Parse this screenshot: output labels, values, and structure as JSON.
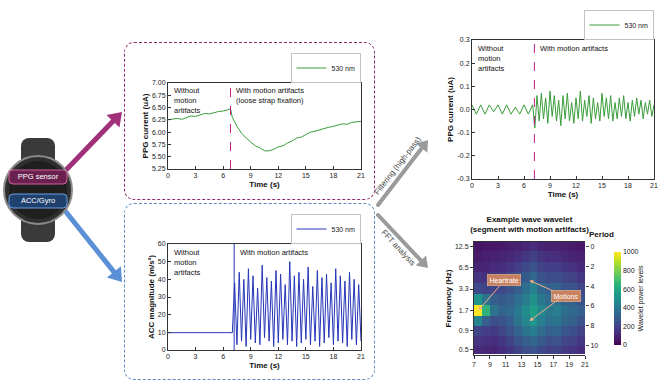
{
  "chart_data": [
    {
      "type": "line",
      "x_label": "Time (s)",
      "y_label": "PPG current (uA)",
      "xlim": [
        0,
        21
      ],
      "xticks": [
        0,
        3,
        6,
        9,
        12,
        15,
        18,
        21
      ],
      "ylim": [
        5.25,
        7.0
      ],
      "yticks": [
        5.25,
        {
          "value": 5.5,
          "label": "5.50"
        },
        5.75,
        {
          "value": 6.0,
          "label": "6.00"
        },
        6.25,
        {
          "value": 6.5,
          "label": "6.50"
        },
        6.75,
        {
          "value": 7.0,
          "label": "7.00"
        }
      ],
      "grid": false,
      "legend": "top right",
      "onset_time": 6.8,
      "annotations": [
        "Without\nmotion\nartifacts",
        "With motion artifacts\n(loose strap fixation)"
      ],
      "x": [
        0,
        0.5,
        1,
        1.5,
        2,
        2.5,
        3,
        3.5,
        4,
        4.5,
        5,
        5.5,
        6,
        6.5,
        6.8,
        7,
        7.5,
        8,
        8.5,
        9,
        9.5,
        10,
        10.5,
        11,
        11.5,
        12,
        12.5,
        13,
        13.5,
        14,
        14.5,
        15,
        15.5,
        16,
        16.5,
        17,
        17.5,
        18,
        18.5,
        19,
        19.5,
        20,
        20.5,
        21
      ],
      "series": [
        {
          "name": "530 nm",
          "color": "#3a9d3a",
          "values": [
            6.25,
            6.27,
            6.28,
            6.26,
            6.3,
            6.33,
            6.32,
            6.35,
            6.38,
            6.37,
            6.4,
            6.42,
            6.43,
            6.45,
            6.48,
            6.3,
            6.12,
            5.98,
            5.88,
            5.8,
            5.72,
            5.68,
            5.62,
            5.62,
            5.65,
            5.7,
            5.72,
            5.78,
            5.82,
            5.88,
            5.9,
            5.95,
            6.0,
            6.02,
            6.05,
            6.08,
            6.1,
            6.12,
            6.14,
            6.17,
            6.16,
            6.2,
            6.21,
            6.22
          ]
        }
      ]
    },
    {
      "type": "line",
      "x_label": "Time (s)",
      "y_label": "ACC magnitude (m/s²)",
      "xlim": [
        0,
        21
      ],
      "xticks": [
        0,
        3,
        6,
        9,
        12,
        15,
        18,
        21
      ],
      "ylim": [
        0,
        60
      ],
      "yticks": [
        0,
        10,
        20,
        30,
        40,
        50,
        60
      ],
      "grid": false,
      "legend": "top right",
      "onset_time": 7.2,
      "annotations": [
        "Without\nmotion\nartifacts",
        "With motion artifacts"
      ],
      "x": [
        0,
        1,
        2,
        3,
        4,
        5,
        6,
        7,
        7.25,
        7.5,
        7.75,
        8,
        8.25,
        8.5,
        8.75,
        9,
        9.25,
        9.5,
        9.75,
        10,
        10.25,
        10.5,
        10.75,
        11,
        11.25,
        11.5,
        11.75,
        12,
        12.25,
        12.5,
        12.75,
        13,
        13.25,
        13.5,
        13.75,
        14,
        14.25,
        14.5,
        14.75,
        15,
        15.25,
        15.5,
        15.75,
        16,
        16.25,
        16.5,
        16.75,
        17,
        17.25,
        17.5,
        17.75,
        18,
        18.25,
        18.5,
        18.75,
        19,
        19.25,
        19.5,
        19.75,
        20,
        20.25,
        20.5,
        20.75,
        21
      ],
      "series": [
        {
          "name": "530 nm",
          "color": "#2636b8",
          "values": [
            9.8,
            9.8,
            9.8,
            9.8,
            9.8,
            9.8,
            9.8,
            9.8,
            38,
            3,
            44,
            5,
            40,
            2,
            46,
            6,
            42,
            4,
            35,
            3,
            48,
            7,
            41,
            5,
            39,
            2,
            45,
            4,
            43,
            6,
            37,
            3,
            50,
            5,
            42,
            2,
            44,
            4,
            40,
            6,
            47,
            3,
            36,
            5,
            45,
            2,
            41,
            4,
            43,
            7,
            38,
            3,
            46,
            5,
            42,
            4,
            39,
            2,
            44,
            6,
            40,
            3,
            37,
            5
          ]
        }
      ]
    },
    {
      "type": "line",
      "x_label": "Time (s)",
      "y_label": "PPG current (uA)",
      "xlim": [
        0,
        21
      ],
      "xticks": [
        0,
        3,
        6,
        9,
        12,
        15,
        18,
        21
      ],
      "ylim": [
        -0.3,
        0.3
      ],
      "yticks": [
        -0.3,
        -0.2,
        -0.1,
        {
          "value": 0,
          "label": "0.0"
        },
        0.1,
        0.2,
        0.3
      ],
      "grid": false,
      "legend": "top right",
      "onset_time": 7.2,
      "annotations": [
        "Without\nmotion\nartifacts",
        "With motion artifacts"
      ],
      "x": [
        0,
        0.5,
        1,
        1.5,
        2,
        2.5,
        3,
        3.5,
        4,
        4.5,
        5,
        5.5,
        6,
        6.5,
        7,
        7.25,
        7.5,
        7.75,
        8,
        8.25,
        8.5,
        8.75,
        9,
        9.25,
        9.5,
        9.75,
        10,
        10.25,
        10.5,
        10.75,
        11,
        11.25,
        11.5,
        11.75,
        12,
        12.25,
        12.5,
        12.75,
        13,
        13.25,
        13.5,
        13.75,
        14,
        14.25,
        14.5,
        14.75,
        15,
        15.25,
        15.5,
        15.75,
        16,
        16.25,
        16.5,
        16.75,
        17,
        17.25,
        17.5,
        17.75,
        18,
        18.25,
        18.5,
        18.75,
        19,
        19.25,
        19.5,
        19.75,
        20,
        20.25,
        20.5,
        20.75,
        21
      ],
      "series": [
        {
          "name": "530 nm",
          "color": "#3a9d3a",
          "values": [
            0.02,
            -0.02,
            0.02,
            -0.02,
            0.02,
            -0.01,
            0.02,
            -0.02,
            0.02,
            -0.02,
            0.01,
            -0.02,
            0.02,
            -0.02,
            0.02,
            -0.08,
            0.06,
            -0.05,
            0.07,
            -0.04,
            0.05,
            -0.06,
            0.08,
            -0.03,
            0.06,
            -0.05,
            0.04,
            -0.07,
            0.06,
            -0.04,
            0.07,
            -0.05,
            0.03,
            -0.06,
            0.05,
            -0.04,
            0.08,
            -0.05,
            0.04,
            -0.03,
            0.06,
            -0.06,
            0.05,
            -0.04,
            0.03,
            -0.05,
            0.07,
            -0.03,
            0.05,
            -0.04,
            0.06,
            -0.05,
            0.03,
            -0.04,
            0.05,
            -0.03,
            0.06,
            -0.04,
            0.03,
            -0.05,
            0.04,
            -0.03,
            0.05,
            -0.02,
            0.04,
            -0.04,
            0.03,
            -0.02,
            0.04,
            -0.03,
            0.02
          ]
        }
      ]
    },
    {
      "type": "heatmap",
      "title": "Example wave wavelet\n(segment with motion artifacts)",
      "y_label": "Frequency (Hz)",
      "y2_label": "Period",
      "log": "y",
      "xlim": [
        7,
        21
      ],
      "xticks": [
        7,
        9,
        11,
        13,
        15,
        17,
        19,
        21
      ],
      "ylim": [
        0.425,
        14.2
      ],
      "yticks": [
        0.5,
        0.9,
        1.7,
        3.3,
        6.5,
        12.5
      ],
      "y2lim": [
        11,
        -0.5
      ],
      "y2ticks": [
        0,
        2,
        4,
        6,
        8,
        10
      ],
      "grid": false,
      "annotations": [
        "Heartrate",
        "Motions"
      ],
      "x": [
        7.5,
        8.5,
        9.5,
        10.5,
        11.5,
        12.5,
        13.5,
        14.5,
        15.5,
        16.5,
        17.5,
        18.5,
        19.5,
        20.5
      ],
      "y": [
        0.5,
        0.65,
        0.9,
        1.2,
        1.7,
        2.4,
        3.3,
        4.7,
        6.5,
        9.1,
        12.5
      ],
      "z": [
        [
          120,
          110,
          100,
          130,
          160,
          200,
          240,
          260,
          220,
          190,
          200,
          170,
          150,
          130
        ],
        [
          150,
          140,
          130,
          160,
          200,
          260,
          300,
          330,
          280,
          240,
          250,
          210,
          190,
          160
        ],
        [
          200,
          180,
          170,
          210,
          260,
          320,
          380,
          420,
          350,
          300,
          320,
          270,
          240,
          200
        ],
        [
          450,
          300,
          240,
          260,
          300,
          380,
          450,
          520,
          420,
          360,
          380,
          330,
          300,
          260
        ],
        [
          1000,
          650,
          380,
          320,
          340,
          400,
          480,
          560,
          460,
          400,
          420,
          370,
          340,
          300
        ],
        [
          520,
          380,
          300,
          280,
          300,
          360,
          420,
          500,
          400,
          350,
          360,
          320,
          300,
          260
        ],
        [
          220,
          200,
          210,
          220,
          250,
          300,
          360,
          440,
          340,
          300,
          310,
          270,
          250,
          210
        ],
        [
          150,
          140,
          160,
          170,
          200,
          240,
          280,
          340,
          260,
          230,
          240,
          210,
          190,
          160
        ],
        [
          100,
          100,
          120,
          130,
          150,
          180,
          220,
          260,
          200,
          180,
          180,
          160,
          140,
          120
        ],
        [
          70,
          80,
          90,
          100,
          110,
          130,
          160,
          190,
          150,
          130,
          130,
          110,
          100,
          90
        ],
        [
          50,
          60,
          60,
          70,
          80,
          90,
          110,
          130,
          100,
          90,
          90,
          80,
          70,
          60
        ]
      ],
      "colorbar": {
        "title": "Wavelet power levels",
        "range": [
          0,
          1000
        ],
        "ticks": [
          0,
          200,
          400,
          600,
          800,
          1000
        ]
      }
    }
  ],
  "diagram": {
    "device_labels": [
      "PPG sensor",
      "ACC/Gyro"
    ],
    "arrow_labels": [
      "Filtering (high-pass)",
      "FFT analysis"
    ]
  }
}
